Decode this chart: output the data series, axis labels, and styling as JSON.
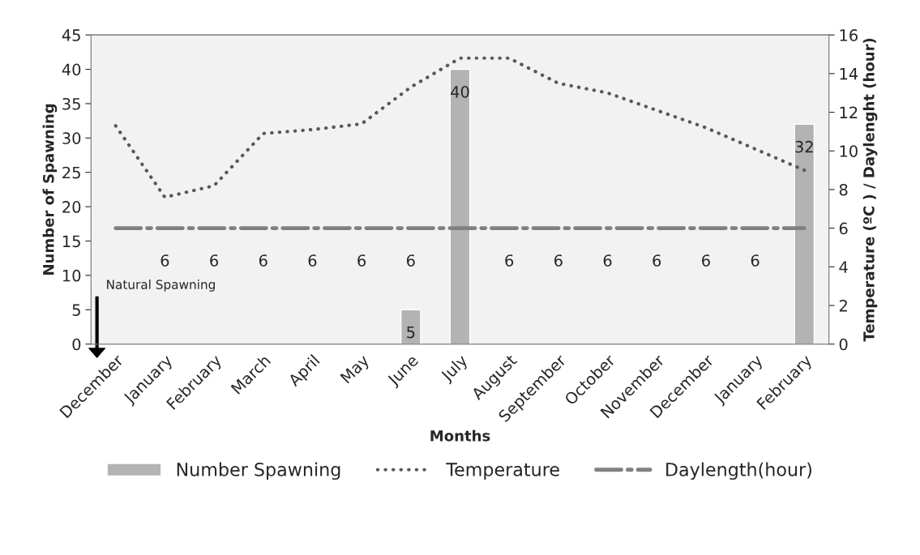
{
  "chart_data": {
    "type": "bar",
    "categories": [
      "December",
      "January",
      "February",
      "March",
      "April",
      "May",
      "June",
      "July",
      "August",
      "September",
      "October",
      "November",
      "December",
      "January",
      "February"
    ],
    "xlabel": "Months",
    "ylabel": "Number of Spawning",
    "y2label": "Temperature (ºC ) / Daylenght (hour)",
    "ylim": [
      0,
      45
    ],
    "yticks": [
      0,
      5,
      10,
      15,
      20,
      25,
      30,
      35,
      40,
      45
    ],
    "y2lim": [
      0,
      16
    ],
    "y2ticks": [
      0,
      2,
      4,
      6,
      8,
      10,
      12,
      14,
      16
    ],
    "series": [
      {
        "name": "Number Spawning",
        "color": "#b3b3b3",
        "values": [
          null,
          null,
          null,
          null,
          null,
          null,
          5,
          40,
          null,
          null,
          null,
          null,
          null,
          null,
          32
        ],
        "value_labels": [
          null,
          null,
          null,
          null,
          null,
          null,
          "5",
          "40",
          null,
          null,
          null,
          null,
          null,
          null,
          "32"
        ]
      },
      {
        "name": "Temperature",
        "type": "line",
        "axis": "y2",
        "color": "#595959",
        "line_style": "dotted",
        "values": [
          11.3,
          7.6,
          8.2,
          10.9,
          11.1,
          11.4,
          13.3,
          14.8,
          14.8,
          13.5,
          13.0,
          12.1,
          11.2,
          10.1,
          9.0
        ]
      },
      {
        "name": "Daylength(hour)",
        "type": "line",
        "axis": "y2",
        "color": "#808080",
        "line_style": "dashdot",
        "values": [
          6,
          6,
          6,
          6,
          6,
          6,
          6,
          6,
          6,
          6,
          6,
          6,
          6,
          6,
          6
        ],
        "value_labels": [
          null,
          "6",
          "6",
          "6",
          "6",
          "6",
          "6",
          null,
          "6",
          "6",
          "6",
          "6",
          "6",
          "6",
          null
        ]
      }
    ],
    "annotations": [
      "Natural Spawning"
    ],
    "legend": "bottom",
    "grid": false
  }
}
